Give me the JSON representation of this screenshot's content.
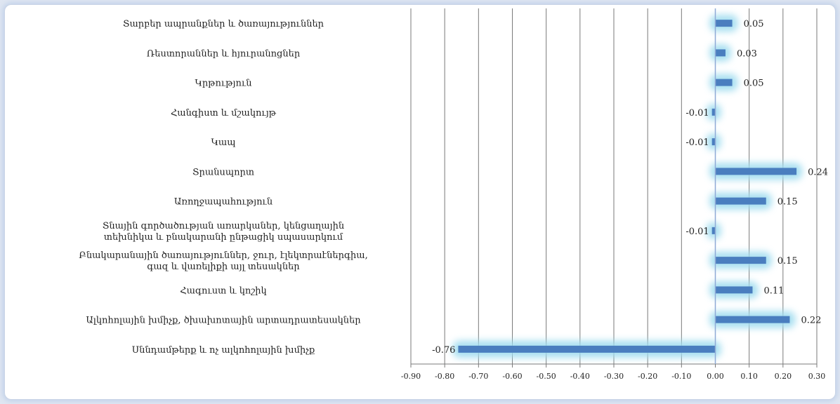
{
  "chart_data": {
    "type": "bar",
    "orientation": "horizontal",
    "categories": [
      "Տարբեր ապրանքներ և ծառայություններ",
      "Ռեստորաններ և հյուրանոցներ",
      "Կրթություն",
      "Հանգիստ և մշակույթ",
      "Կապ",
      "Տրանսպորտ",
      "Առողջապահություն",
      "Տնային գործածության առարկաներ, կենցաղային տեխնիկա և բնակարանի ընթացիկ սպասարկում",
      "Բնակարանային ծառայություններ, ջուր, էլեկտրաէներգիա, գազ և վառելիքի այլ տեսակներ",
      "Հագուստ և կոշիկ",
      "Ալկոհոլային խմիչք, ծխախոտային արտադրատեսակներ",
      "Սննդամթերք և ոչ ալկոհոլային խմիչք"
    ],
    "values": [
      0.05,
      0.03,
      0.05,
      -0.01,
      -0.01,
      0.24,
      0.15,
      -0.01,
      0.15,
      0.11,
      0.22,
      -0.76
    ],
    "value_labels": [
      "0.05",
      "0.03",
      "0.05",
      "-0.01",
      "-0.01",
      "0.24",
      "0.15",
      "-0.01",
      "0.15",
      "0.11",
      "0.22",
      "-0.76"
    ],
    "xlim": [
      -0.9,
      0.3
    ],
    "x_ticks": [
      -0.9,
      -0.8,
      -0.7,
      -0.6,
      -0.5,
      -0.4,
      -0.3,
      -0.2,
      -0.1,
      0.0,
      0.1,
      0.2,
      0.3
    ],
    "x_tick_labels": [
      "-0.90",
      "-0.80",
      "-0.70",
      "-0.60",
      "-0.50",
      "-0.40",
      "-0.30",
      "-0.20",
      "-0.10",
      "0.00",
      "0.10",
      "0.20",
      "0.30"
    ],
    "title": "",
    "xlabel": "",
    "ylabel": "",
    "grid": "vertical",
    "colors": {
      "bar": "#4a7ebf",
      "glow": "#9fdcef",
      "grid": "#7a7a7a",
      "axis": "#8faad6"
    }
  }
}
